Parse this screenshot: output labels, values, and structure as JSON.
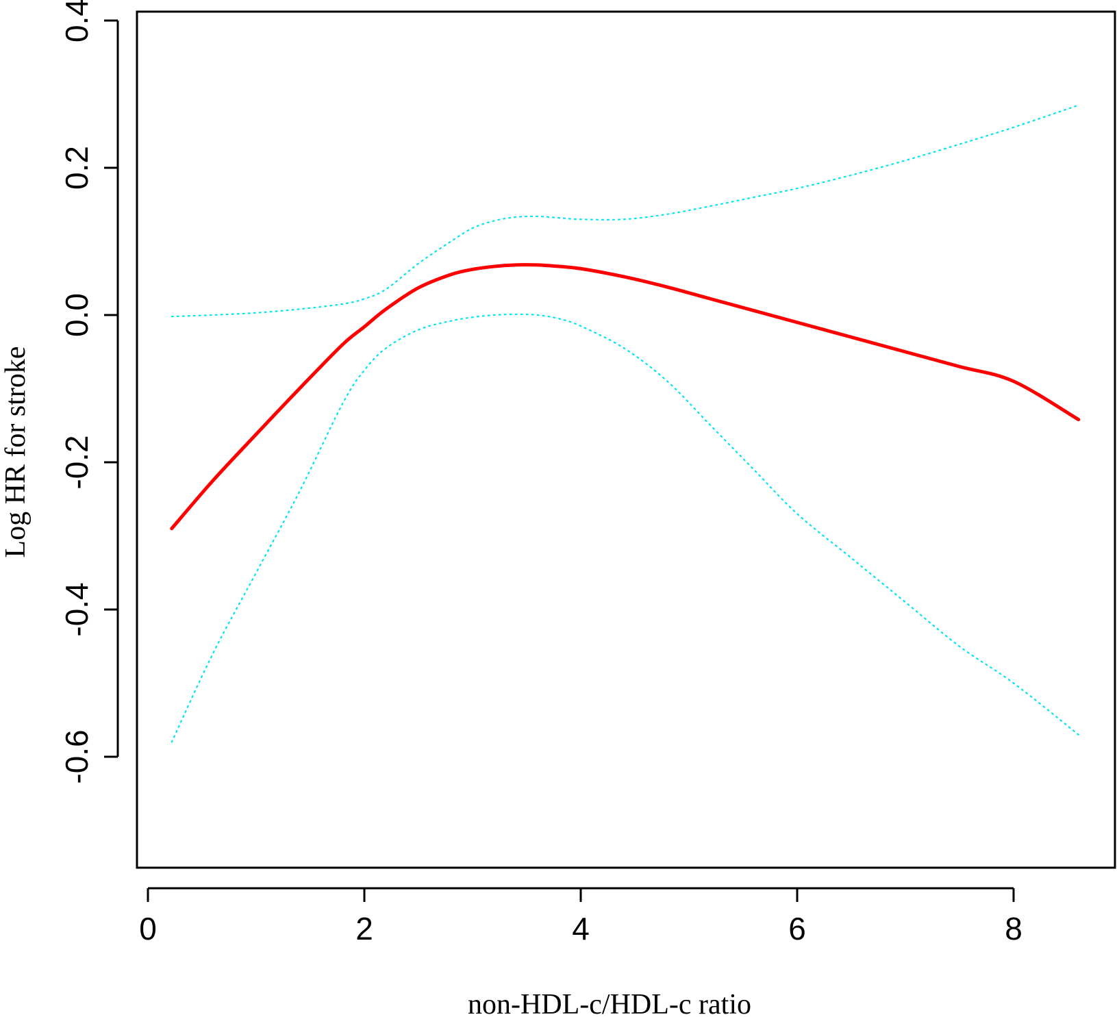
{
  "chart_data": {
    "type": "line",
    "title": "",
    "xlabel": "non-HDL-c/HDL-c ratio",
    "ylabel": "Log HR for stroke",
    "xlim": [
      0,
      8.6
    ],
    "ylim": [
      -0.75,
      0.4
    ],
    "x_ticks": [
      0,
      2,
      4,
      6,
      8
    ],
    "x_tick_labels": [
      "0",
      "2",
      "4",
      "6",
      "8"
    ],
    "y_ticks": [
      -0.6,
      -0.4,
      -0.2,
      0.0,
      0.2,
      0.4
    ],
    "y_tick_labels": [
      "-0.6",
      "-0.4",
      "-0.2",
      "0.0",
      "0.2",
      "0.4"
    ],
    "grid": false,
    "legend": "none",
    "series": [
      {
        "role": "estimate",
        "color": "#ff0000",
        "style": "solid",
        "x": [
          0.22,
          0.6,
          1.0,
          1.4,
          1.8,
          2.0,
          2.2,
          2.5,
          2.8,
          3.0,
          3.2,
          3.4,
          3.6,
          3.8,
          4.0,
          4.4,
          4.8,
          5.2,
          5.6,
          6.0,
          6.5,
          7.0,
          7.5,
          8.0,
          8.6
        ],
        "y": [
          -0.29,
          -0.225,
          -0.162,
          -0.1,
          -0.04,
          -0.016,
          0.008,
          0.037,
          0.055,
          0.062,
          0.066,
          0.068,
          0.068,
          0.066,
          0.063,
          0.052,
          0.038,
          0.022,
          0.006,
          -0.01,
          -0.03,
          -0.05,
          -0.07,
          -0.09,
          -0.142
        ]
      },
      {
        "role": "upper-ci",
        "color": "#00e5ee",
        "style": "dotted",
        "x": [
          0.22,
          0.6,
          1.0,
          1.4,
          1.8,
          2.0,
          2.2,
          2.5,
          2.8,
          3.0,
          3.2,
          3.4,
          3.6,
          3.8,
          4.0,
          4.4,
          4.8,
          5.2,
          5.6,
          6.0,
          6.5,
          7.0,
          7.5,
          8.0,
          8.6
        ],
        "y": [
          -0.002,
          0.0,
          0.003,
          0.008,
          0.015,
          0.022,
          0.035,
          0.07,
          0.1,
          0.118,
          0.128,
          0.133,
          0.134,
          0.132,
          0.13,
          0.13,
          0.137,
          0.148,
          0.16,
          0.172,
          0.19,
          0.21,
          0.232,
          0.255,
          0.285
        ]
      },
      {
        "role": "lower-ci",
        "color": "#00e5ee",
        "style": "dotted",
        "x": [
          0.22,
          0.6,
          1.0,
          1.4,
          1.8,
          2.0,
          2.2,
          2.5,
          2.8,
          3.0,
          3.2,
          3.4,
          3.6,
          3.8,
          4.0,
          4.4,
          4.8,
          5.2,
          5.6,
          6.0,
          6.5,
          7.0,
          7.5,
          8.0,
          8.6
        ],
        "y": [
          -0.58,
          -0.46,
          -0.35,
          -0.24,
          -0.12,
          -0.075,
          -0.045,
          -0.02,
          -0.008,
          -0.003,
          0.0,
          0.001,
          0.0,
          -0.005,
          -0.015,
          -0.045,
          -0.09,
          -0.15,
          -0.21,
          -0.27,
          -0.33,
          -0.39,
          -0.45,
          -0.5,
          -0.57
        ]
      }
    ]
  }
}
